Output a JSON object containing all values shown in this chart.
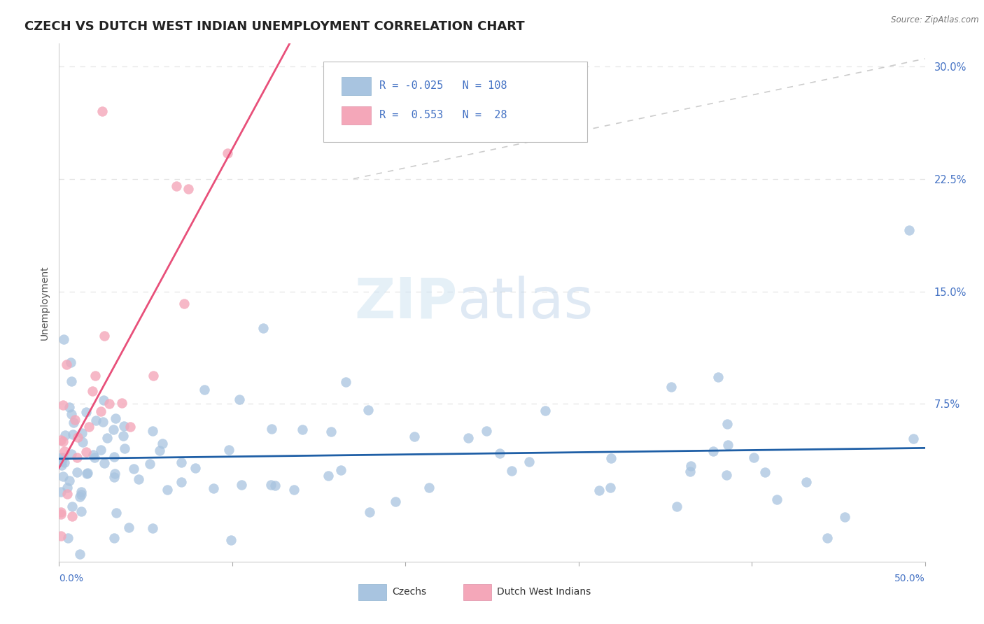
{
  "title": "CZECH VS DUTCH WEST INDIAN UNEMPLOYMENT CORRELATION CHART",
  "source": "Source: ZipAtlas.com",
  "ylabel": "Unemployment",
  "yticks": [
    0.0,
    0.075,
    0.15,
    0.225,
    0.3
  ],
  "ytick_labels": [
    "",
    "7.5%",
    "15.0%",
    "22.5%",
    "30.0%"
  ],
  "xmin": 0.0,
  "xmax": 0.5,
  "ymin": -0.03,
  "ymax": 0.315,
  "czech_color": "#a8c4e0",
  "dutch_color": "#f4a7b9",
  "czech_line_color": "#1f5fa6",
  "dutch_line_color": "#e8507a",
  "diag_line_color": "#cccccc",
  "background_color": "#ffffff",
  "title_fontsize": 13,
  "czech_R": -0.025,
  "dutch_R": 0.553,
  "czech_N": 108,
  "dutch_N": 28,
  "seed": 42,
  "grid_color": "#e5e5e5",
  "ytick_color": "#4472c4",
  "ylabel_color": "#555555",
  "legend_text_color": "#4472c4"
}
